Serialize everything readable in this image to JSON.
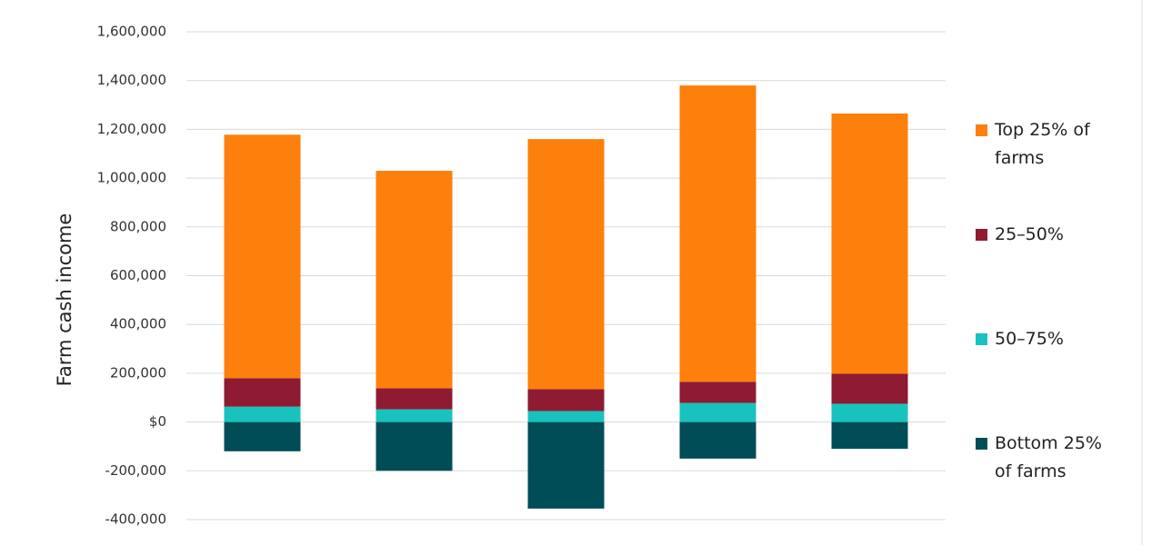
{
  "chart_data": {
    "type": "stacked-bar",
    "y_label": "Farm cash income",
    "categories": [
      null,
      null,
      null,
      null,
      null
    ],
    "series": [
      {
        "name": "Bottom 25% of farms",
        "color": "#004d57",
        "values": [
          -120000,
          -200000,
          -355000,
          -150000,
          -110000
        ]
      },
      {
        "name": "50–75%",
        "color": "#19c3bd",
        "values": [
          63000,
          52000,
          45000,
          78000,
          75000
        ]
      },
      {
        "name": "25–50%",
        "color": "#8e1b32",
        "values": [
          117000,
          86000,
          90000,
          87000,
          123000
        ]
      },
      {
        "name": "Top 25% of farms",
        "color": "#fd7f0c",
        "values": [
          998000,
          892000,
          1025000,
          1215000,
          1067000
        ]
      }
    ],
    "ylim": [
      -400000,
      1600000
    ],
    "yticks": [
      {
        "value": -400000,
        "label": "-400,000"
      },
      {
        "value": -200000,
        "label": "-200,000"
      },
      {
        "value": 0,
        "label": "$0"
      },
      {
        "value": 200000,
        "label": "200,000"
      },
      {
        "value": 400000,
        "label": "400,000"
      },
      {
        "value": 600000,
        "label": "600,000"
      },
      {
        "value": 800000,
        "label": "800,000"
      },
      {
        "value": 1000000,
        "label": "1,000,000"
      },
      {
        "value": 1200000,
        "label": "1,200,000"
      },
      {
        "value": 1400000,
        "label": "1,400,000"
      },
      {
        "value": 1600000,
        "label": "1,600,000"
      }
    ],
    "grid": true,
    "legend": "right"
  }
}
